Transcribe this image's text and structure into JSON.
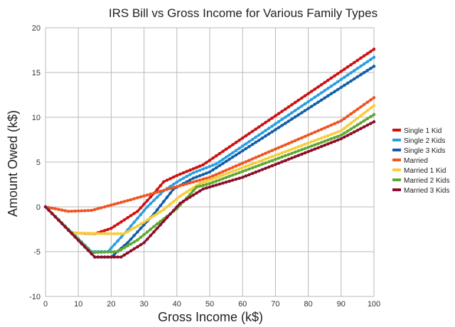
{
  "chart_data": {
    "type": "line",
    "title": "IRS Bill vs Gross Income for Various Family Types",
    "xlabel": "Gross Income (k$)",
    "ylabel": "Amount Owed (k$)",
    "xlim": [
      0,
      100
    ],
    "ylim": [
      -10,
      20
    ],
    "x_ticks": [
      "0",
      "10",
      "20",
      "30",
      "40",
      "50",
      "60",
      "70",
      "80",
      "90",
      "100"
    ],
    "y_ticks": [
      "-10",
      "-5",
      "0",
      "5",
      "10",
      "15",
      "20"
    ],
    "grid": true,
    "legend_position": "right",
    "series": [
      {
        "name": "Single 1 Kid",
        "color": "#cc1111",
        "points": [
          [
            0,
            0
          ],
          [
            8,
            -2.9
          ],
          [
            15,
            -3
          ],
          [
            20,
            -2.4
          ],
          [
            28,
            -0.5
          ],
          [
            33,
            1.5
          ],
          [
            36,
            2.8
          ],
          [
            40,
            3.5
          ],
          [
            48,
            4.7
          ],
          [
            52,
            5.7
          ],
          [
            100,
            17.6
          ]
        ]
      },
      {
        "name": "Single 2 Kids",
        "color": "#2a9fe0",
        "points": [
          [
            0,
            0
          ],
          [
            14,
            -5
          ],
          [
            19,
            -5
          ],
          [
            24,
            -3
          ],
          [
            31,
            0
          ],
          [
            36,
            1.8
          ],
          [
            41,
            3
          ],
          [
            45,
            3.8
          ],
          [
            52,
            4.8
          ],
          [
            100,
            16.7
          ]
        ]
      },
      {
        "name": "Single 3 Kids",
        "color": "#115fa8",
        "points": [
          [
            0,
            0
          ],
          [
            15,
            -5.6
          ],
          [
            20,
            -5.6
          ],
          [
            25,
            -4
          ],
          [
            33,
            -0.8
          ],
          [
            39,
            2
          ],
          [
            45,
            3.2
          ],
          [
            50,
            3.9
          ],
          [
            100,
            15.7
          ]
        ]
      },
      {
        "name": "Married",
        "color": "#ee5522",
        "points": [
          [
            0,
            0
          ],
          [
            7,
            -0.5
          ],
          [
            14,
            -0.4
          ],
          [
            25,
            0.7
          ],
          [
            50,
            3.3
          ],
          [
            90,
            9.6
          ],
          [
            100,
            12.2
          ]
        ]
      },
      {
        "name": "Married 1 Kid",
        "color": "#f7cd3a",
        "points": [
          [
            0,
            0
          ],
          [
            8,
            -2.9
          ],
          [
            18,
            -3
          ],
          [
            24,
            -3
          ],
          [
            30,
            -1.7
          ],
          [
            36,
            -0.3
          ],
          [
            41,
            1.2
          ],
          [
            47,
            2.6
          ],
          [
            50,
            3
          ],
          [
            90,
            8.5
          ],
          [
            100,
            11.3
          ]
        ]
      },
      {
        "name": "Married 2 Kids",
        "color": "#5fa832",
        "points": [
          [
            0,
            0
          ],
          [
            14,
            -5.1
          ],
          [
            22,
            -5
          ],
          [
            28,
            -3.7
          ],
          [
            34,
            -1.9
          ],
          [
            40,
            -0.2
          ],
          [
            46,
            2.2
          ],
          [
            50,
            2.6
          ],
          [
            90,
            8
          ],
          [
            100,
            10.3
          ]
        ]
      },
      {
        "name": "Married 3 Kids",
        "color": "#8b0f29",
        "points": [
          [
            0,
            0
          ],
          [
            15,
            -5.6
          ],
          [
            23,
            -5.6
          ],
          [
            30,
            -4
          ],
          [
            36,
            -1.6
          ],
          [
            41,
            0.4
          ],
          [
            48,
            2
          ],
          [
            60,
            3.3
          ],
          [
            90,
            7.6
          ],
          [
            100,
            9.5
          ]
        ]
      }
    ]
  }
}
